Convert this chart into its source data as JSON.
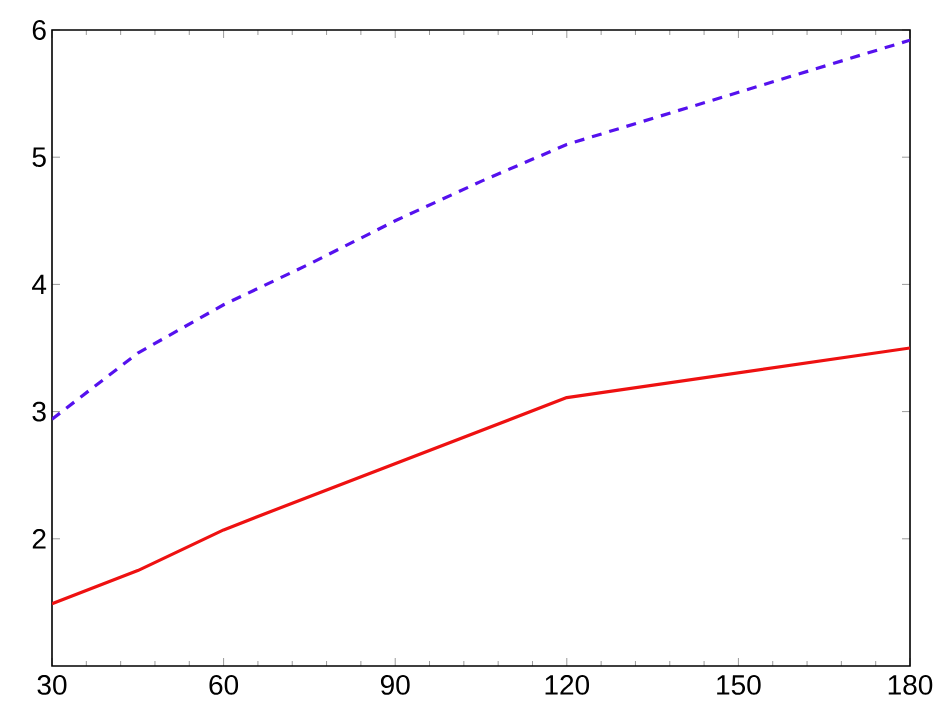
{
  "chart_data": {
    "type": "line",
    "xlim": [
      30,
      180
    ],
    "ylim": [
      1,
      6
    ],
    "xticks": [
      30,
      60,
      90,
      120,
      150,
      180
    ],
    "yticks": [
      2,
      3,
      4,
      5,
      6
    ],
    "grid": false,
    "series": [
      {
        "color": "#ee1111",
        "line_style": "solid",
        "x": [
          30,
          45,
          60,
          72,
          120,
          180
        ],
        "values": [
          1.49,
          1.75,
          2.07,
          2.28,
          3.11,
          3.5
        ]
      },
      {
        "color": "#5511ee",
        "line_style": "dashed",
        "x": [
          30,
          45,
          60,
          75,
          90,
          105,
          120,
          180
        ],
        "values": [
          2.94,
          3.46,
          3.84,
          4.16,
          4.5,
          4.81,
          5.1,
          5.92
        ]
      }
    ]
  }
}
